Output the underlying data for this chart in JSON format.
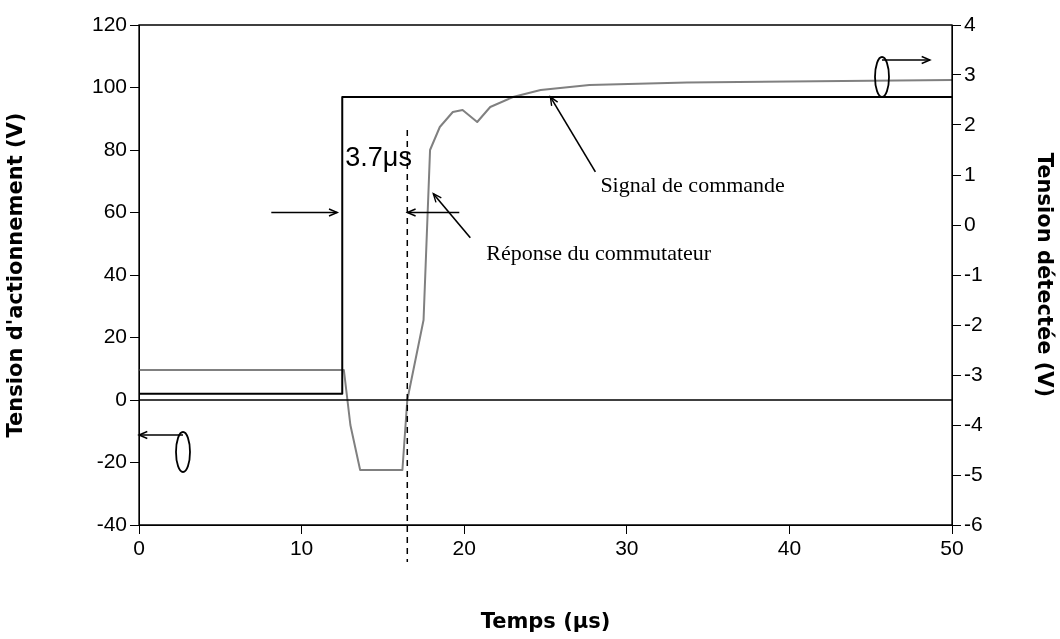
{
  "chart_data": {
    "type": "line",
    "xlabel": "Temps (μs)",
    "ylabel": "Tension d'actionnement (V)",
    "y2label": "Tension détectée (V)",
    "xlim": [
      0,
      50
    ],
    "xticks": [
      0,
      10,
      20,
      30,
      40,
      50
    ],
    "ylim": [
      -40,
      120
    ],
    "yticks": [
      -40,
      -20,
      0,
      20,
      40,
      60,
      80,
      100,
      120
    ],
    "y2lim": [
      -6,
      4
    ],
    "y2ticks": [
      -6,
      -5,
      -4,
      -3,
      -2,
      -1,
      0,
      1,
      2,
      3,
      4
    ],
    "legend": false,
    "marker": "none",
    "line_style": "solid",
    "series": [
      {
        "color": "#000000",
        "x": [
          0,
          12.5,
          12.5,
          50
        ],
        "values": [
          2,
          2,
          97,
          97
        ]
      },
      {
        "color": "#808080",
        "axis": "y2",
        "x": [
          0,
          12.6,
          13.0,
          13.6,
          16.2,
          16.5,
          17.5,
          17.9,
          18.5,
          19.3,
          19.9,
          20.8,
          21.6,
          23,
          24.7,
          27.7,
          33.7,
          50
        ],
        "values": [
          -2.9,
          -2.9,
          -4.0,
          -4.9,
          -4.9,
          -3.5,
          -1.9,
          1.5,
          1.96,
          2.26,
          2.3,
          2.06,
          2.36,
          2.56,
          2.7,
          2.8,
          2.85,
          2.9
        ]
      }
    ],
    "ref_lines": [
      {
        "axis": "x",
        "value": 16.5,
        "line_style": "dashed",
        "color": "#000000"
      },
      {
        "axis": "y",
        "value": 0,
        "color": "#000000"
      }
    ],
    "annotations": [
      {
        "text": "3.7μs",
        "x": 16.5,
        "y": 60
      },
      {
        "text": "Signal de commande",
        "x": 25.3,
        "y": 97
      },
      {
        "text": "Réponse du commutateur",
        "x": 18.1,
        "y": 66
      }
    ]
  }
}
